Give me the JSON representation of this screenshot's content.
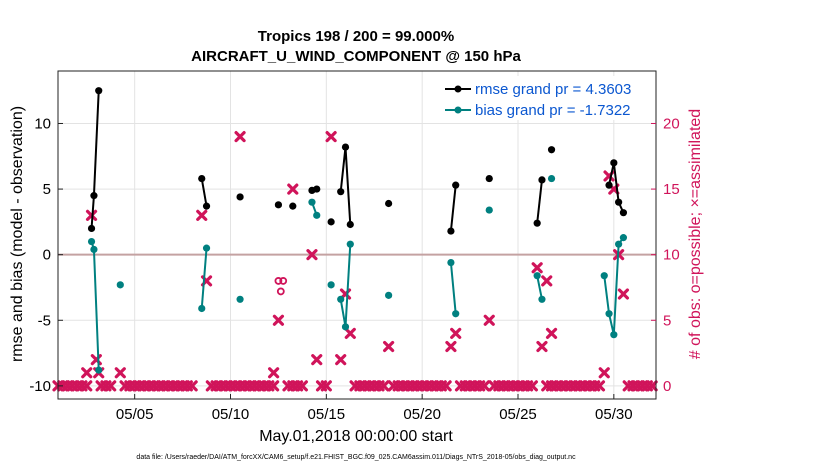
{
  "chart_data": {
    "type": "line",
    "title_line1": "Tropics 198 / 200 = 99.000%",
    "title_line2": "AIRCRAFT_U_WIND_COMPONENT @ 150 hPa",
    "xlabel": "May.01,2018 00:00:00 start",
    "ylabel_left": "rmse and bias (model - observation)",
    "ylabel_right": "# of obs: o=possible; ×=assimilated",
    "footer": "data file: /Users/raeder/DAI/ATM_forcXX/CAM6_setup/f.e21.FHIST_BGC.f09_025.CAM6assim.011/Diags_NTrS_2018-05/obs_diag_output.nc",
    "xlim": [
      1,
      32.2
    ],
    "ylim_left": [
      -11,
      14
    ],
    "ylim_right": [
      -1,
      24
    ],
    "x_ticks": [
      5,
      10,
      15,
      20,
      25,
      30
    ],
    "x_tick_labels": [
      "05/05",
      "05/10",
      "05/15",
      "05/20",
      "05/25",
      "05/30"
    ],
    "y_ticks_left": [
      -10,
      -5,
      0,
      5,
      10
    ],
    "y_ticks_right": [
      0,
      5,
      10,
      15,
      20
    ],
    "legend": {
      "position": "top-right",
      "rmse_label": "rmse grand pr = 4.3603",
      "bias_label": "bias grand pr = -1.7322"
    },
    "colors": {
      "rmse": "#000000",
      "bias": "#008080",
      "obs": "#d0145a",
      "grid": "#e3e3e3",
      "zero": "#c4a2a2"
    },
    "series": [
      {
        "name": "rmse",
        "segments": [
          [
            [
              2.75,
              2.0
            ],
            [
              2.875,
              4.5
            ],
            [
              3.125,
              12.5
            ]
          ],
          [
            [
              8.5,
              5.8
            ],
            [
              8.75,
              3.7
            ]
          ],
          [
            [
              10.5,
              4.4
            ]
          ],
          [
            [
              12.5,
              3.8
            ]
          ],
          [
            [
              13.25,
              3.7
            ]
          ],
          [
            [
              14.25,
              4.9
            ],
            [
              14.5,
              5.0
            ]
          ],
          [
            [
              15.25,
              2.5
            ]
          ],
          [
            [
              15.75,
              4.8
            ],
            [
              16.0,
              8.2
            ],
            [
              16.25,
              2.3
            ]
          ],
          [
            [
              18.25,
              3.9
            ]
          ],
          [
            [
              21.5,
              1.8
            ],
            [
              21.75,
              5.3
            ]
          ],
          [
            [
              23.5,
              5.8
            ]
          ],
          [
            [
              26.0,
              2.4
            ],
            [
              26.25,
              5.7
            ]
          ],
          [
            [
              26.75,
              8.0
            ]
          ],
          [
            [
              29.75,
              5.3
            ],
            [
              30.0,
              7.0
            ],
            [
              30.25,
              4.0
            ],
            [
              30.5,
              3.2
            ]
          ]
        ]
      },
      {
        "name": "bias",
        "segments": [
          [
            [
              2.75,
              1.0
            ],
            [
              2.875,
              0.4
            ],
            [
              3.125,
              -8.8
            ]
          ],
          [
            [
              4.25,
              -2.3
            ]
          ],
          [
            [
              8.5,
              -4.1
            ],
            [
              8.75,
              0.5
            ]
          ],
          [
            [
              10.5,
              -3.4
            ]
          ],
          [
            [
              14.25,
              4.0
            ],
            [
              14.5,
              3.0
            ]
          ],
          [
            [
              15.25,
              -2.3
            ]
          ],
          [
            [
              15.75,
              -3.4
            ],
            [
              16.0,
              -5.5
            ],
            [
              16.25,
              0.8
            ]
          ],
          [
            [
              18.25,
              -3.1
            ]
          ],
          [
            [
              21.5,
              -0.6
            ],
            [
              21.75,
              -4.5
            ]
          ],
          [
            [
              23.5,
              3.4
            ]
          ],
          [
            [
              26.0,
              -1.6
            ],
            [
              26.25,
              -3.4
            ]
          ],
          [
            [
              26.75,
              5.8
            ]
          ],
          [
            [
              29.5,
              -1.6
            ],
            [
              29.75,
              -4.5
            ],
            [
              30.0,
              -6.1
            ],
            [
              30.25,
              0.8
            ],
            [
              30.5,
              1.3
            ]
          ]
        ]
      }
    ],
    "obs_possible": [
      [
        12.5,
        8.0
      ],
      [
        12.75,
        8.0
      ],
      [
        12.625,
        7.2
      ]
    ],
    "obs_assimilated_zero_ranges": [
      [
        1.0,
        2.5
      ],
      [
        3.25,
        3.75
      ],
      [
        4.5,
        8.0
      ],
      [
        9.0,
        12.25
      ],
      [
        13.0,
        13.75
      ],
      [
        14.75,
        15.0
      ],
      [
        16.5,
        18.0
      ],
      [
        18.5,
        21.25
      ],
      [
        22.0,
        23.25
      ],
      [
        23.75,
        25.75
      ],
      [
        26.5,
        29.25
      ],
      [
        30.75,
        32.0
      ]
    ],
    "obs_assimilated": [
      [
        2.5,
        1.0
      ],
      [
        2.75,
        13.0
      ],
      [
        3.0,
        2.0
      ],
      [
        3.125,
        1.0
      ],
      [
        4.25,
        1.0
      ],
      [
        8.5,
        13.0
      ],
      [
        8.75,
        8.0
      ],
      [
        10.5,
        19.0
      ],
      [
        12.25,
        1.0
      ],
      [
        12.5,
        5.0
      ],
      [
        13.25,
        15.0
      ],
      [
        14.25,
        10.0
      ],
      [
        14.5,
        2.0
      ],
      [
        15.25,
        19.0
      ],
      [
        15.75,
        2.0
      ],
      [
        16.0,
        7.0
      ],
      [
        16.25,
        4.0
      ],
      [
        18.25,
        3.0
      ],
      [
        21.5,
        3.0
      ],
      [
        21.75,
        4.0
      ],
      [
        23.5,
        5.0
      ],
      [
        26.0,
        9.0
      ],
      [
        26.25,
        3.0
      ],
      [
        26.5,
        8.0
      ],
      [
        26.75,
        4.0
      ],
      [
        29.5,
        1.0
      ],
      [
        29.75,
        16.0
      ],
      [
        30.0,
        15.0
      ],
      [
        30.25,
        10.0
      ],
      [
        30.5,
        7.0
      ]
    ]
  }
}
